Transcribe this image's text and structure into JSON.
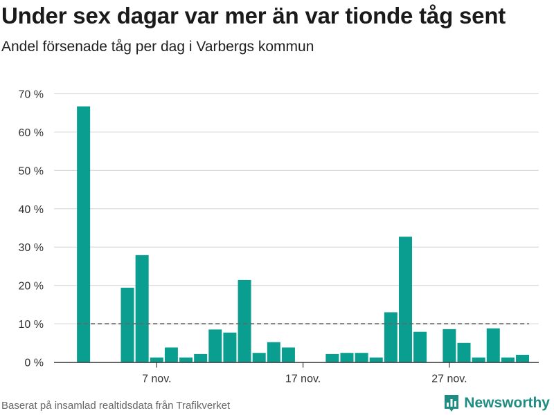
{
  "header": {
    "title": "Under sex dagar var mer än var tionde tåg sent",
    "subtitle": "Andel försenade tåg per dag i Varbergs kommun"
  },
  "footer": {
    "source": "Baserat på insamlad realtidsdata från Trafikverket",
    "brand": "Newsworthy",
    "logo_icon": "bar-chart-logo-icon"
  },
  "colors": {
    "bar": "#0a9e90",
    "grid": "#dcdcdc",
    "reference_line": "#666666",
    "axis": "#333333",
    "brand": "#1e8c82"
  },
  "chart_data": {
    "type": "bar",
    "title": "Under sex dagar var mer än var tionde tåg sent",
    "subtitle": "Andel försenade tåg per dag i Varbergs kommun",
    "xlabel": "",
    "ylabel": "",
    "y_unit": "%",
    "ylim": [
      0,
      70
    ],
    "yticks": [
      0,
      10,
      20,
      30,
      40,
      50,
      60,
      70
    ],
    "ytick_labels": [
      "0 %",
      "10 %",
      "20 %",
      "30 %",
      "40 %",
      "50 %",
      "60 %",
      "70 %"
    ],
    "x_start_day": 1,
    "x": [
      2,
      5,
      6,
      7,
      8,
      9,
      10,
      11,
      12,
      13,
      14,
      15,
      16,
      17,
      19,
      20,
      21,
      22,
      23,
      24,
      25,
      27,
      28,
      29,
      30,
      31,
      32
    ],
    "values": [
      66.7,
      19.4,
      27.9,
      1.2,
      3.8,
      1.2,
      2.1,
      8.5,
      7.7,
      21.4,
      2.4,
      5.2,
      3.8,
      0,
      2.1,
      2.4,
      2.4,
      1.2,
      13.0,
      32.7,
      7.9,
      8.6,
      5.0,
      1.2,
      8.8,
      1.2,
      1.9
    ],
    "xticks": [
      7,
      17,
      27
    ],
    "xtick_labels": [
      "7 nov.",
      "17 nov.",
      "27 nov."
    ],
    "reference_line": {
      "y": 10,
      "style": "dashed"
    },
    "grid": true,
    "legend": "none"
  }
}
